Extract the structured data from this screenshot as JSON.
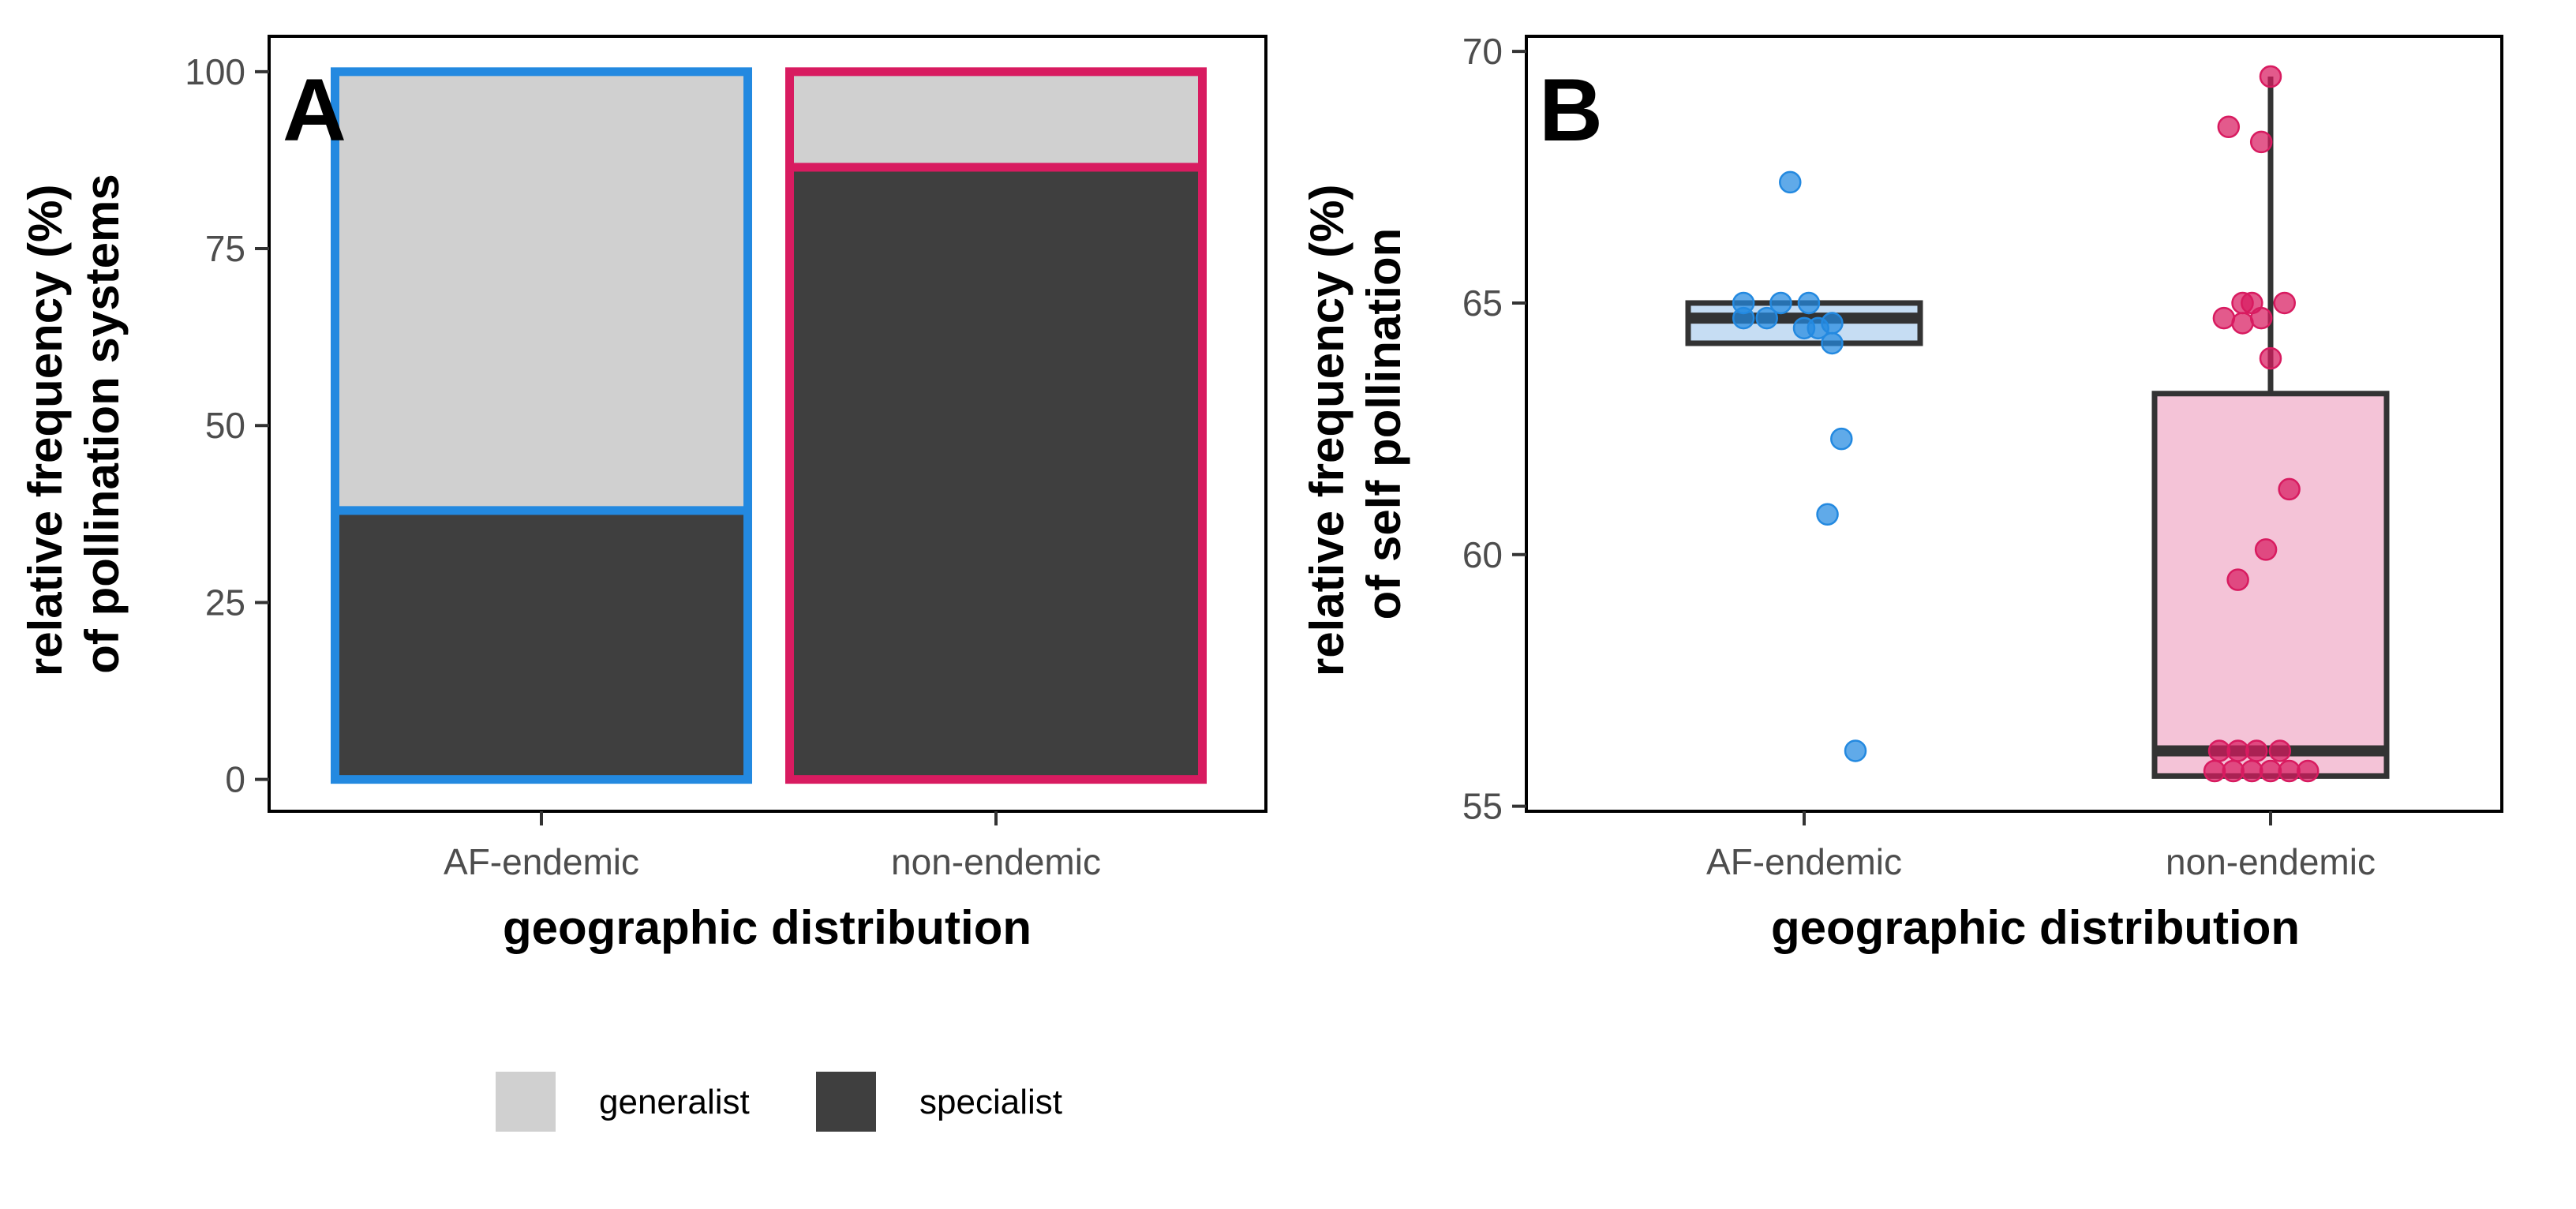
{
  "colors": {
    "generalist": "#d0d0d0",
    "specialist": "#3f3f3f",
    "af_endemic": "#2389e0",
    "non_endemic": "#d81b60",
    "af_endemic_box_fill": "#c6ddf3",
    "non_endemic_box_fill": "#f4c3d7",
    "box_line": "#333333"
  },
  "chart_data": [
    {
      "panel": "A",
      "type": "bar",
      "stacked": true,
      "categories": [
        "AF-endemic",
        "non-endemic"
      ],
      "series": [
        {
          "name": "specialist",
          "values": [
            38,
            86.5
          ]
        },
        {
          "name": "generalist",
          "values": [
            62,
            13.5
          ]
        }
      ],
      "xlabel": "geographic distribution",
      "ylabel_lines": [
        "relative frequency (%)",
        "of pollination systems"
      ],
      "ylim": [
        -4.5,
        105
      ],
      "yticks": [
        "0",
        "25",
        "50",
        "75",
        "100"
      ],
      "ytick_values": [
        0,
        25,
        50,
        75,
        100
      ],
      "grid": false
    },
    {
      "panel": "B",
      "type": "box",
      "categories": [
        "AF-endemic",
        "non-endemic"
      ],
      "boxes": [
        {
          "category": "AF-endemic",
          "q1": 64.2,
          "median": 64.7,
          "q3": 65.0,
          "whisker_low": 64.2,
          "whisker_high": 65.0
        },
        {
          "category": "non-endemic",
          "q1": 55.6,
          "median": 56.1,
          "q3": 63.2,
          "whisker_low": 55.6,
          "whisker_high": 69.5
        }
      ],
      "points": [
        {
          "category": "AF-endemic",
          "x_offset": -0.03,
          "y": 67.4
        },
        {
          "category": "AF-endemic",
          "x_offset": -0.13,
          "y": 65.0
        },
        {
          "category": "AF-endemic",
          "x_offset": -0.05,
          "y": 65.0
        },
        {
          "category": "AF-endemic",
          "x_offset": 0.01,
          "y": 65.0
        },
        {
          "category": "AF-endemic",
          "x_offset": -0.13,
          "y": 64.7
        },
        {
          "category": "AF-endemic",
          "x_offset": -0.08,
          "y": 64.7
        },
        {
          "category": "AF-endemic",
          "x_offset": 0.0,
          "y": 64.5
        },
        {
          "category": "AF-endemic",
          "x_offset": 0.03,
          "y": 64.5
        },
        {
          "category": "AF-endemic",
          "x_offset": 0.06,
          "y": 64.6
        },
        {
          "category": "AF-endemic",
          "x_offset": 0.06,
          "y": 64.2
        },
        {
          "category": "AF-endemic",
          "x_offset": 0.08,
          "y": 62.3
        },
        {
          "category": "AF-endemic",
          "x_offset": 0.05,
          "y": 60.8
        },
        {
          "category": "AF-endemic",
          "x_offset": 0.11,
          "y": 56.1
        },
        {
          "category": "non-endemic",
          "x_offset": 0.0,
          "y": 69.5
        },
        {
          "category": "non-endemic",
          "x_offset": -0.09,
          "y": 68.5
        },
        {
          "category": "non-endemic",
          "x_offset": -0.02,
          "y": 68.2
        },
        {
          "category": "non-endemic",
          "x_offset": -0.1,
          "y": 64.7
        },
        {
          "category": "non-endemic",
          "x_offset": -0.06,
          "y": 65.0
        },
        {
          "category": "non-endemic",
          "x_offset": -0.04,
          "y": 65.0
        },
        {
          "category": "non-endemic",
          "x_offset": -0.06,
          "y": 64.6
        },
        {
          "category": "non-endemic",
          "x_offset": 0.03,
          "y": 65.0
        },
        {
          "category": "non-endemic",
          "x_offset": -0.02,
          "y": 64.7
        },
        {
          "category": "non-endemic",
          "x_offset": 0.0,
          "y": 63.9
        },
        {
          "category": "non-endemic",
          "x_offset": 0.04,
          "y": 61.3
        },
        {
          "category": "non-endemic",
          "x_offset": -0.01,
          "y": 60.1
        },
        {
          "category": "non-endemic",
          "x_offset": -0.07,
          "y": 59.5
        },
        {
          "category": "non-endemic",
          "x_offset": -0.11,
          "y": 56.1
        },
        {
          "category": "non-endemic",
          "x_offset": -0.07,
          "y": 56.1
        },
        {
          "category": "non-endemic",
          "x_offset": -0.03,
          "y": 56.1
        },
        {
          "category": "non-endemic",
          "x_offset": 0.02,
          "y": 56.1
        },
        {
          "category": "non-endemic",
          "x_offset": -0.12,
          "y": 55.7
        },
        {
          "category": "non-endemic",
          "x_offset": -0.08,
          "y": 55.7
        },
        {
          "category": "non-endemic",
          "x_offset": -0.04,
          "y": 55.7
        },
        {
          "category": "non-endemic",
          "x_offset": 0.0,
          "y": 55.7
        },
        {
          "category": "non-endemic",
          "x_offset": 0.04,
          "y": 55.7
        },
        {
          "category": "non-endemic",
          "x_offset": 0.08,
          "y": 55.7
        }
      ],
      "xlabel": "geographic distribution",
      "ylabel_lines": [
        "relative frequency (%)",
        "of self pollination"
      ],
      "ylim": [
        54.9,
        70.3
      ],
      "yticks": [
        "55",
        "60",
        "65",
        "70"
      ],
      "ytick_values": [
        55,
        60,
        65,
        70
      ],
      "grid": false
    }
  ],
  "legend": {
    "placement": "bottom-left",
    "items": [
      {
        "label": "generalist",
        "color": "#d0d0d0"
      },
      {
        "label": "specialist",
        "color": "#3f3f3f"
      }
    ]
  }
}
